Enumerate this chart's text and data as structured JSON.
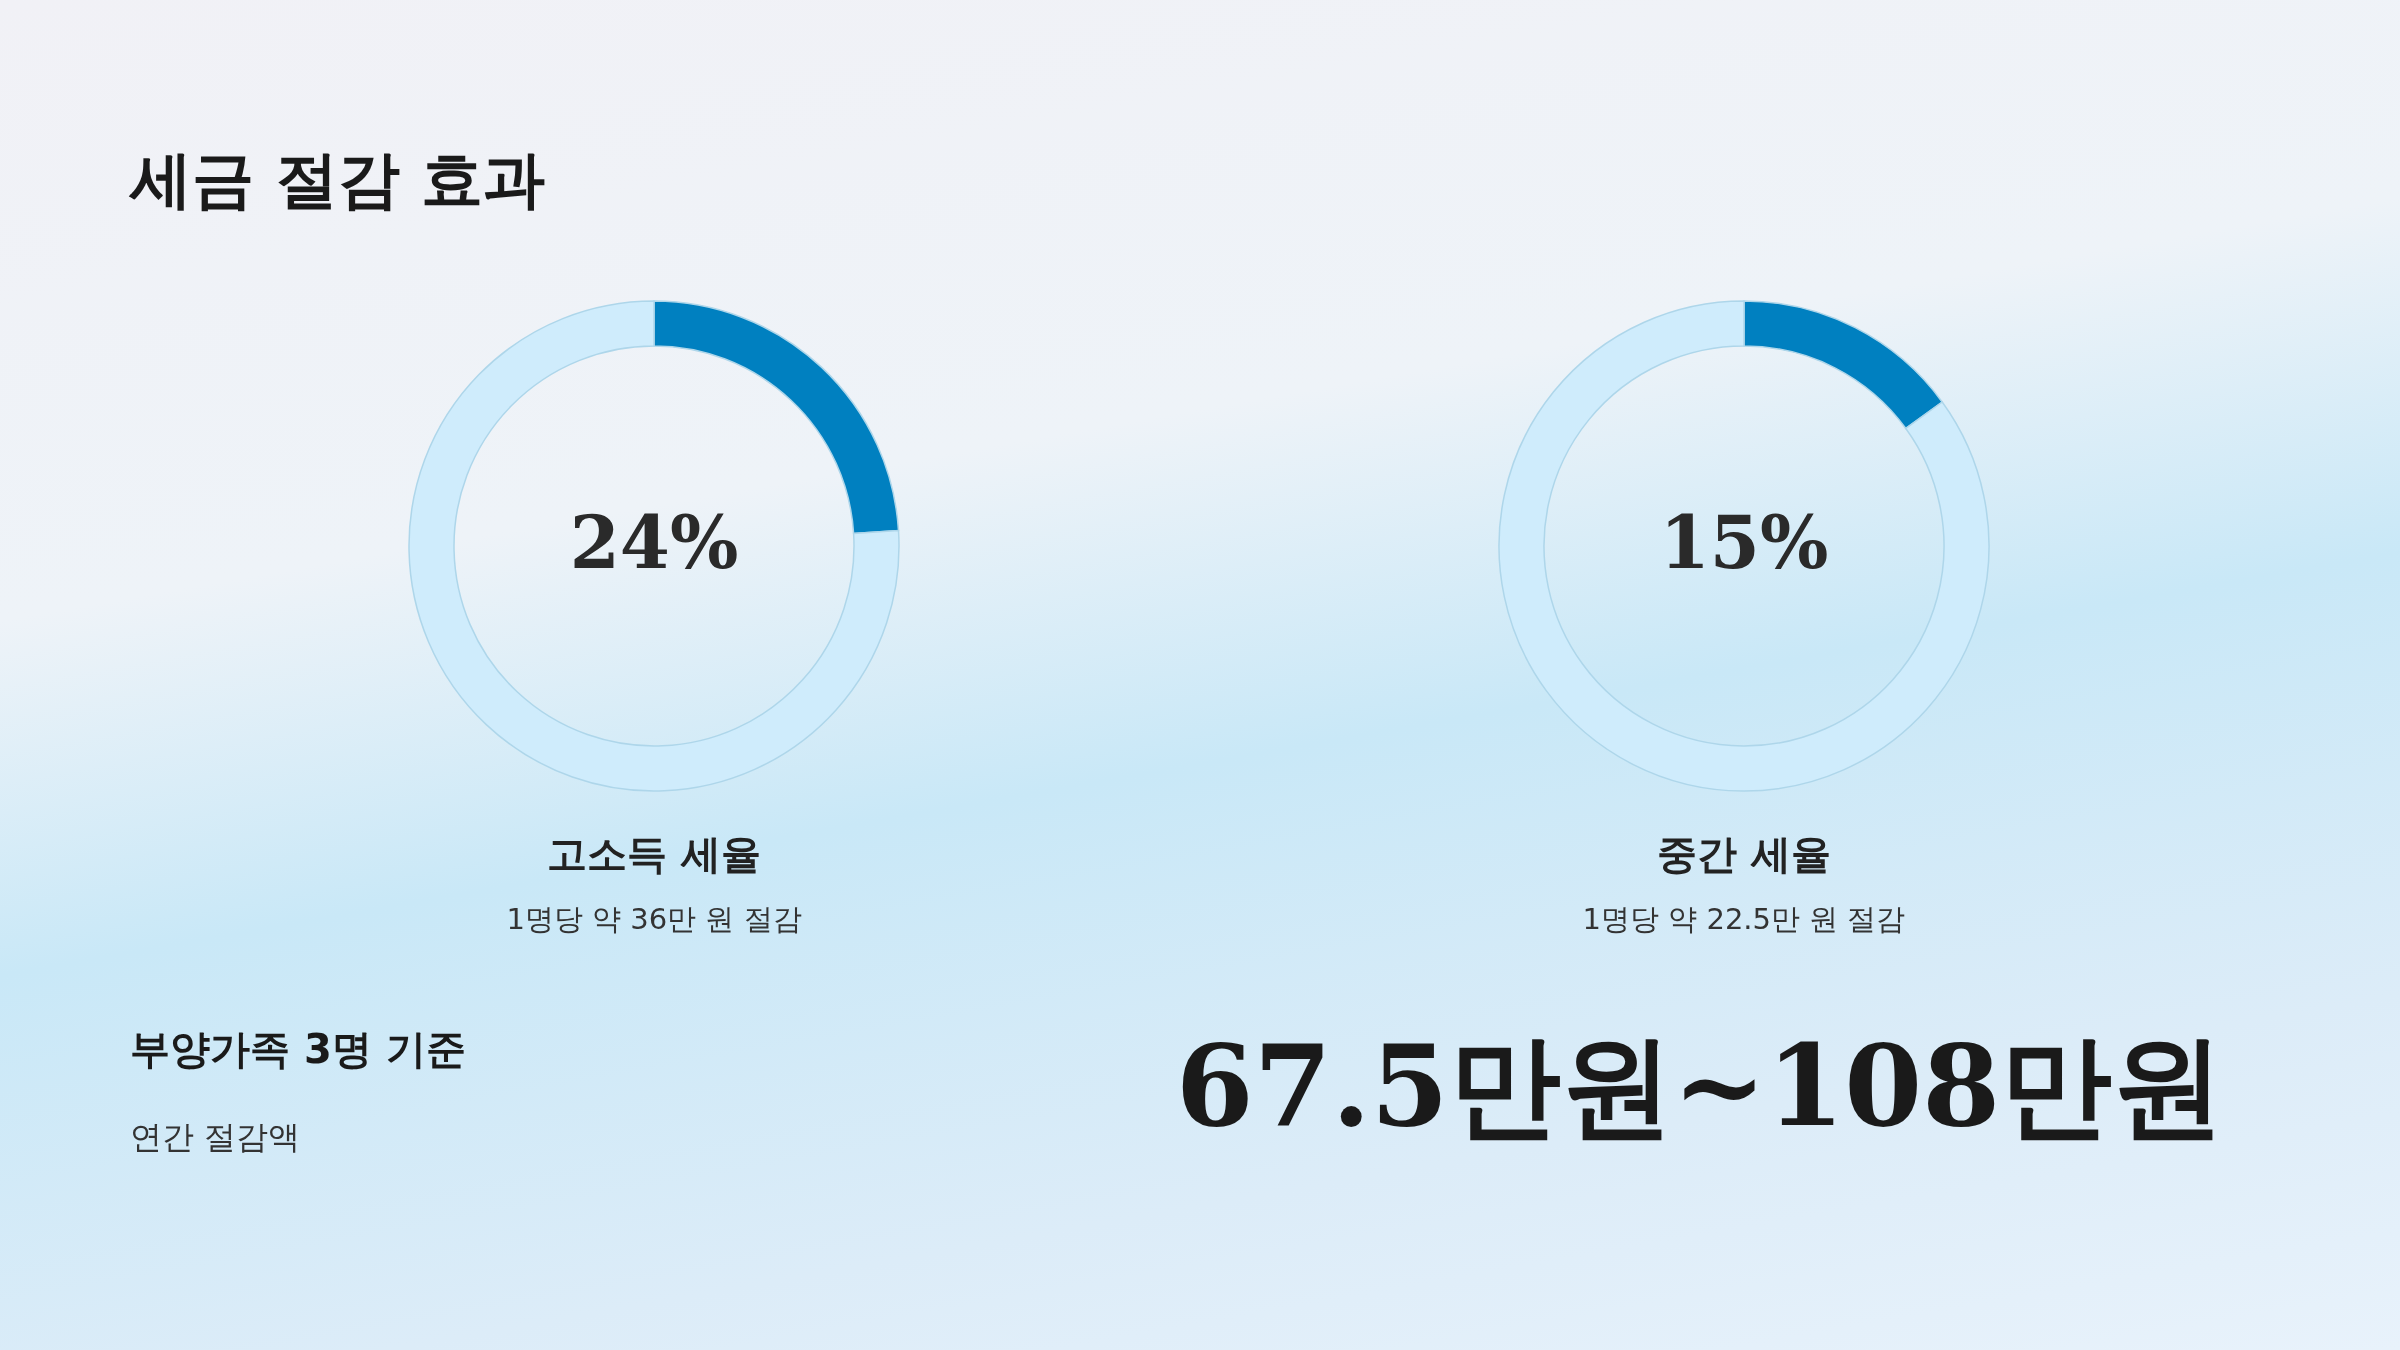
{
  "chart_data": [
    {
      "type": "donut",
      "title": "고소득 세율",
      "subtitle": "1명당 약 36만 원 절감",
      "categories": [
        null,
        null
      ],
      "values": [
        24,
        76
      ],
      "colors": [
        "#0080c0",
        "#cfecfc"
      ],
      "value_labels": [
        "24%",
        null
      ]
    },
    {
      "type": "donut",
      "title": "중간 세율",
      "subtitle": "1명당 약 22.5만 원 절감",
      "categories": [
        null,
        null
      ],
      "values": [
        15,
        85
      ],
      "colors": [
        "#0080c0",
        "#cfecfc"
      ],
      "value_labels": [
        "15%",
        null
      ]
    },
    {
      "type": "other",
      "title": "세금 절감 효과",
      "annotations": [
        "부양가족 3명 기준",
        "연간 절감액",
        "67.5만원~108만원"
      ]
    }
  ]
}
